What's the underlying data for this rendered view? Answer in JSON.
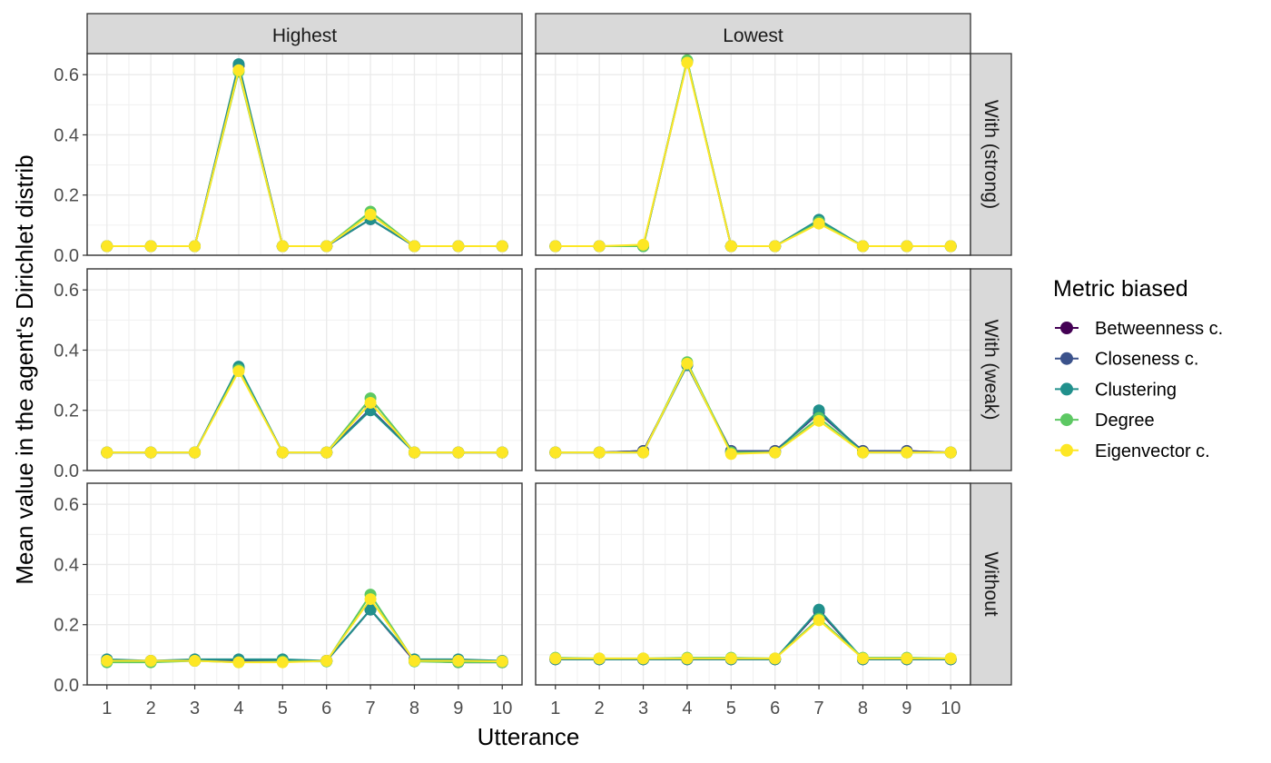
{
  "chart_data": {
    "type": "line",
    "xlabel": "Utterance",
    "ylabel": "Mean value in the agent's Dirichlet distrib",
    "x": [
      1,
      2,
      3,
      4,
      5,
      6,
      7,
      8,
      9,
      10
    ],
    "xticks": [
      "1",
      "2",
      "3",
      "4",
      "5",
      "6",
      "7",
      "8",
      "9",
      "10"
    ],
    "xlim": [
      0.55,
      10.45
    ],
    "ylim": [
      0,
      0.67
    ],
    "yticks": [
      "0.0",
      "0.2",
      "0.4",
      "0.6"
    ],
    "grid": true,
    "legend": {
      "title": "Metric biased",
      "position": "right",
      "entries": [
        "Betweenness c.",
        "Closeness c.",
        "Clustering",
        "Degree",
        "Eigenvector c."
      ]
    },
    "colors": {
      "Betweenness c.": "#440154",
      "Closeness c.": "#3B528B",
      "Clustering": "#21908C",
      "Degree": "#5DC863",
      "Eigenvector c.": "#FDE725"
    },
    "col_facets": [
      "Highest",
      "Lowest"
    ],
    "row_facets": [
      "With (strong)",
      "With (weak)",
      "Without"
    ],
    "panels": [
      {
        "col": "Highest",
        "row": "With (strong)",
        "series": [
          {
            "name": "Betweenness c.",
            "values": [
              0.03,
              0.03,
              0.03,
              0.63,
              0.03,
              0.03,
              0.12,
              0.03,
              0.03,
              0.03
            ]
          },
          {
            "name": "Closeness c.",
            "values": [
              0.03,
              0.03,
              0.03,
              0.63,
              0.03,
              0.03,
              0.12,
              0.03,
              0.03,
              0.03
            ]
          },
          {
            "name": "Clustering",
            "values": [
              0.03,
              0.03,
              0.03,
              0.635,
              0.03,
              0.03,
              0.12,
              0.03,
              0.03,
              0.03
            ]
          },
          {
            "name": "Degree",
            "values": [
              0.03,
              0.03,
              0.03,
              0.61,
              0.03,
              0.03,
              0.145,
              0.03,
              0.03,
              0.03
            ]
          },
          {
            "name": "Eigenvector c.",
            "values": [
              0.03,
              0.03,
              0.03,
              0.615,
              0.03,
              0.03,
              0.135,
              0.03,
              0.03,
              0.03
            ]
          }
        ]
      },
      {
        "col": "Lowest",
        "row": "With (strong)",
        "series": [
          {
            "name": "Betweenness c.",
            "values": [
              0.03,
              0.03,
              0.03,
              0.645,
              0.03,
              0.03,
              0.115,
              0.03,
              0.03,
              0.03
            ]
          },
          {
            "name": "Closeness c.",
            "values": [
              0.03,
              0.03,
              0.03,
              0.645,
              0.03,
              0.03,
              0.115,
              0.03,
              0.03,
              0.03
            ]
          },
          {
            "name": "Clustering",
            "values": [
              0.03,
              0.03,
              0.03,
              0.645,
              0.03,
              0.03,
              0.118,
              0.03,
              0.03,
              0.03
            ]
          },
          {
            "name": "Degree",
            "values": [
              0.03,
              0.03,
              0.03,
              0.648,
              0.03,
              0.03,
              0.11,
              0.03,
              0.03,
              0.03
            ]
          },
          {
            "name": "Eigenvector c.",
            "values": [
              0.03,
              0.03,
              0.035,
              0.64,
              0.03,
              0.03,
              0.105,
              0.03,
              0.03,
              0.03
            ]
          }
        ]
      },
      {
        "col": "Highest",
        "row": "With (weak)",
        "series": [
          {
            "name": "Betweenness c.",
            "values": [
              0.06,
              0.06,
              0.06,
              0.34,
              0.06,
              0.06,
              0.205,
              0.06,
              0.06,
              0.06
            ]
          },
          {
            "name": "Closeness c.",
            "values": [
              0.06,
              0.06,
              0.06,
              0.342,
              0.06,
              0.06,
              0.205,
              0.06,
              0.06,
              0.06
            ]
          },
          {
            "name": "Clustering",
            "values": [
              0.06,
              0.06,
              0.06,
              0.345,
              0.06,
              0.06,
              0.2,
              0.06,
              0.06,
              0.06
            ]
          },
          {
            "name": "Degree",
            "values": [
              0.06,
              0.06,
              0.06,
              0.335,
              0.06,
              0.06,
              0.24,
              0.06,
              0.06,
              0.06
            ]
          },
          {
            "name": "Eigenvector c.",
            "values": [
              0.06,
              0.06,
              0.06,
              0.33,
              0.06,
              0.06,
              0.225,
              0.06,
              0.06,
              0.06
            ]
          }
        ]
      },
      {
        "col": "Lowest",
        "row": "With (weak)",
        "series": [
          {
            "name": "Betweenness c.",
            "values": [
              0.06,
              0.06,
              0.065,
              0.35,
              0.065,
              0.065,
              0.19,
              0.065,
              0.065,
              0.06
            ]
          },
          {
            "name": "Closeness c.",
            "values": [
              0.06,
              0.06,
              0.065,
              0.35,
              0.065,
              0.065,
              0.19,
              0.065,
              0.065,
              0.06
            ]
          },
          {
            "name": "Clustering",
            "values": [
              0.06,
              0.06,
              0.06,
              0.35,
              0.06,
              0.06,
              0.2,
              0.06,
              0.06,
              0.06
            ]
          },
          {
            "name": "Degree",
            "values": [
              0.06,
              0.06,
              0.06,
              0.36,
              0.06,
              0.06,
              0.175,
              0.06,
              0.06,
              0.06
            ]
          },
          {
            "name": "Eigenvector c.",
            "values": [
              0.06,
              0.06,
              0.06,
              0.355,
              0.055,
              0.06,
              0.165,
              0.06,
              0.06,
              0.06
            ]
          }
        ]
      },
      {
        "col": "Highest",
        "row": "Without",
        "series": [
          {
            "name": "Betweenness c.",
            "values": [
              0.08,
              0.078,
              0.08,
              0.08,
              0.08,
              0.08,
              0.25,
              0.08,
              0.075,
              0.075
            ]
          },
          {
            "name": "Closeness c.",
            "values": [
              0.08,
              0.08,
              0.082,
              0.082,
              0.082,
              0.08,
              0.25,
              0.082,
              0.08,
              0.078
            ]
          },
          {
            "name": "Clustering",
            "values": [
              0.085,
              0.08,
              0.085,
              0.085,
              0.085,
              0.08,
              0.25,
              0.085,
              0.085,
              0.08
            ]
          },
          {
            "name": "Degree",
            "values": [
              0.075,
              0.075,
              0.08,
              0.075,
              0.078,
              0.078,
              0.3,
              0.078,
              0.075,
              0.075
            ]
          },
          {
            "name": "Eigenvector c.",
            "values": [
              0.08,
              0.08,
              0.08,
              0.075,
              0.075,
              0.08,
              0.285,
              0.08,
              0.08,
              0.078
            ]
          }
        ]
      },
      {
        "col": "Lowest",
        "row": "Without",
        "series": [
          {
            "name": "Betweenness c.",
            "values": [
              0.085,
              0.085,
              0.085,
              0.085,
              0.085,
              0.085,
              0.245,
              0.085,
              0.085,
              0.085
            ]
          },
          {
            "name": "Closeness c.",
            "values": [
              0.085,
              0.085,
              0.085,
              0.085,
              0.085,
              0.085,
              0.248,
              0.085,
              0.085,
              0.085
            ]
          },
          {
            "name": "Clustering",
            "values": [
              0.085,
              0.085,
              0.085,
              0.085,
              0.085,
              0.085,
              0.25,
              0.085,
              0.085,
              0.085
            ]
          },
          {
            "name": "Degree",
            "values": [
              0.09,
              0.088,
              0.088,
              0.09,
              0.09,
              0.088,
              0.22,
              0.09,
              0.09,
              0.088
            ]
          },
          {
            "name": "Eigenvector c.",
            "values": [
              0.088,
              0.088,
              0.088,
              0.088,
              0.088,
              0.088,
              0.215,
              0.088,
              0.088,
              0.088
            ]
          }
        ]
      }
    ]
  }
}
